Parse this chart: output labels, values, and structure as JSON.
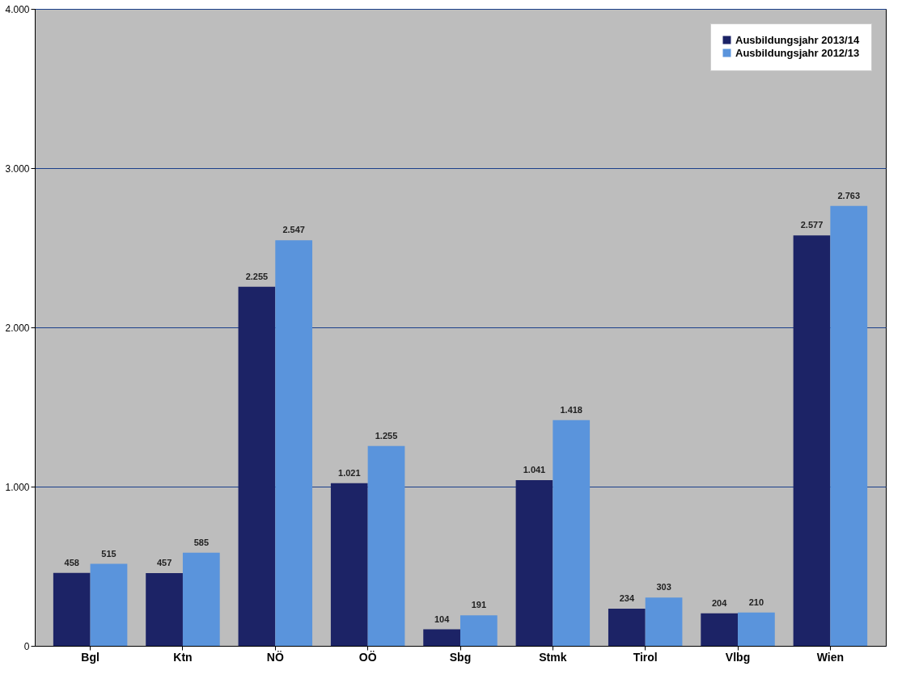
{
  "chart_data": {
    "type": "bar",
    "categories": [
      "Bgl",
      "Ktn",
      "NÖ",
      "OÖ",
      "Sbg",
      "Stmk",
      "Tirol",
      "Vlbg",
      "Wien"
    ],
    "series": [
      {
        "name": "Ausbildungsjahr 2013/14",
        "color": "#1c2366",
        "values": [
          458,
          457,
          2255,
          1021,
          104,
          1041,
          234,
          204,
          2577
        ],
        "value_labels": [
          "458",
          "457",
          "2.255",
          "1.021",
          "104",
          "1.041",
          "234",
          "204",
          "2.577"
        ]
      },
      {
        "name": "Ausbildungsjahr 2012/13",
        "color": "#5a94dc",
        "values": [
          515,
          585,
          2547,
          1255,
          191,
          1418,
          303,
          210,
          2763
        ],
        "value_labels": [
          "515",
          "585",
          "2.547",
          "1.255",
          "191",
          "1.418",
          "303",
          "210",
          "2.763"
        ]
      }
    ],
    "ylim": [
      0,
      4000
    ],
    "yticks": [
      0,
      {
        "value": 1000,
        "label": "1.000"
      },
      {
        "value": 2000,
        "label": "2.000"
      },
      {
        "value": 3000,
        "label": "3.000"
      },
      {
        "value": 4000,
        "label": "4.000"
      }
    ],
    "grid": "y",
    "legend": "top right"
  }
}
